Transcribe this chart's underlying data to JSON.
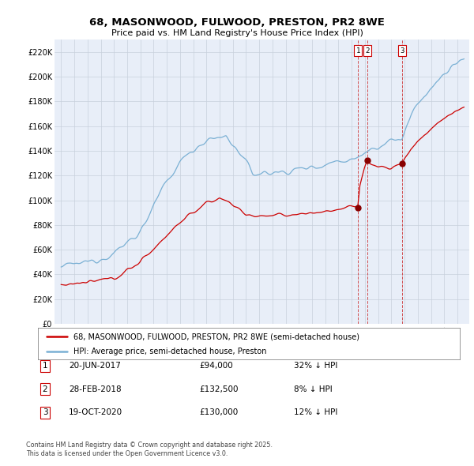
{
  "title": "68, MASONWOOD, FULWOOD, PRESTON, PR2 8WE",
  "subtitle": "Price paid vs. HM Land Registry's House Price Index (HPI)",
  "ylim": [
    0,
    230000
  ],
  "yticks": [
    0,
    20000,
    40000,
    60000,
    80000,
    100000,
    120000,
    140000,
    160000,
    180000,
    200000,
    220000
  ],
  "ytick_labels": [
    "£0",
    "£20K",
    "£40K",
    "£60K",
    "£80K",
    "£100K",
    "£120K",
    "£140K",
    "£160K",
    "£180K",
    "£200K",
    "£220K"
  ],
  "sales": [
    {
      "date_num": 2017.47,
      "price": 94000,
      "label": "1"
    },
    {
      "date_num": 2018.16,
      "price": 132500,
      "label": "2"
    },
    {
      "date_num": 2020.8,
      "price": 130000,
      "label": "3"
    }
  ],
  "sale_dates_str": [
    "20-JUN-2017",
    "28-FEB-2018",
    "19-OCT-2020"
  ],
  "sale_prices_str": [
    "£94,000",
    "£132,500",
    "£130,000"
  ],
  "sale_hpi_str": [
    "32% ↓ HPI",
    "8% ↓ HPI",
    "12% ↓ HPI"
  ],
  "legend_line1": "68, MASONWOOD, FULWOOD, PRESTON, PR2 8WE (semi-detached house)",
  "legend_line2": "HPI: Average price, semi-detached house, Preston",
  "footer1": "Contains HM Land Registry data © Crown copyright and database right 2025.",
  "footer2": "This data is licensed under the Open Government Licence v3.0.",
  "line_color_red": "#cc0000",
  "line_color_blue": "#7ab0d4",
  "bg_color": "#e8eef8",
  "grid_color": "#c8d0dc",
  "sale_marker_color": "#880000",
  "vline_color": "#cc3333",
  "label_box_color": "#cc0000"
}
